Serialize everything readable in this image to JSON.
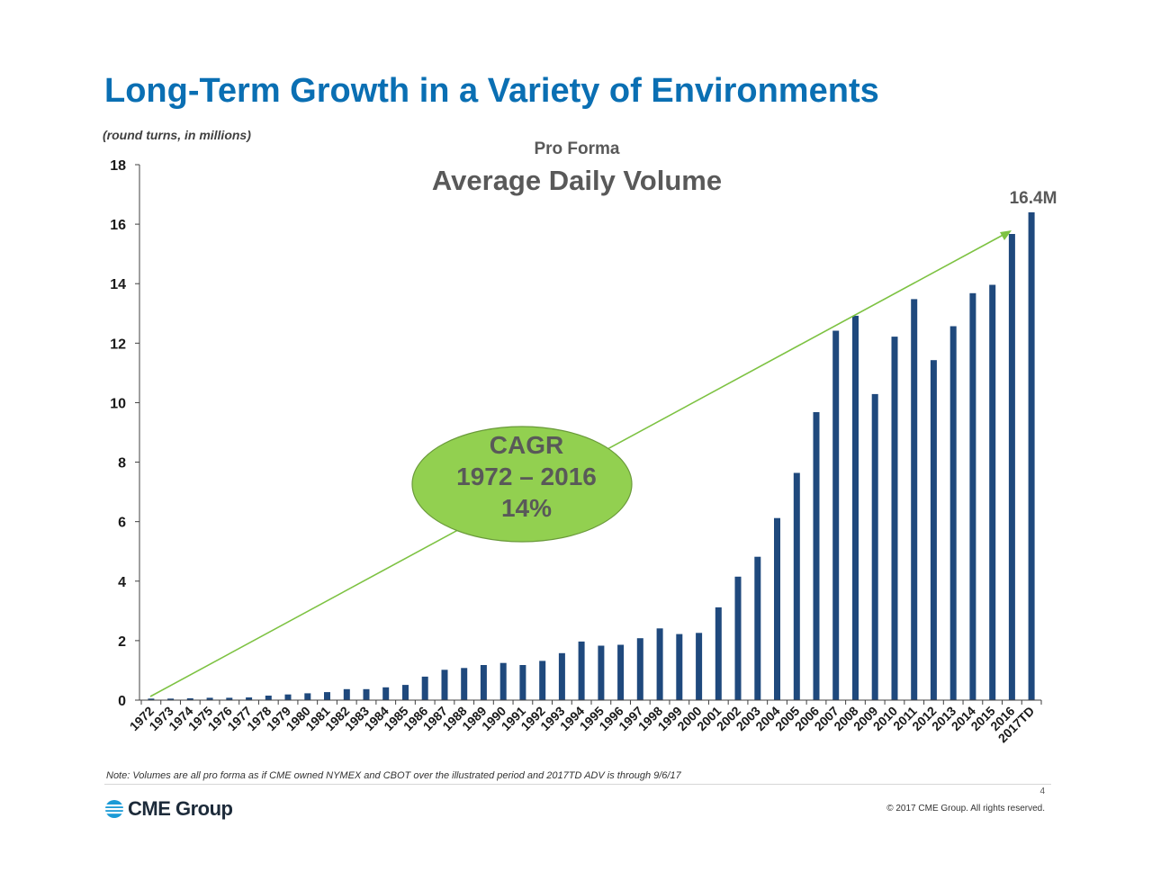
{
  "slide": {
    "title": "Long-Term Growth in a Variety of Environments",
    "units_note": "(round turns, in millions)",
    "footnote": "Note:  Volumes are all pro forma as if CME owned NYMEX and CBOT over the illustrated period and 2017TD ADV is through 9/6/17",
    "page_number": "4",
    "copyright": "© 2017 CME Group. All rights reserved.",
    "logo_text": "CME Group"
  },
  "colors": {
    "title": "#0a6fb3",
    "bar": "#1f497d",
    "trend_line": "#7dc242",
    "cagr_fill": "#92d050",
    "cagr_border": "#6a9a3a",
    "chart_title": "#595959",
    "cagr_text": "#595959"
  },
  "chart_data": {
    "type": "bar",
    "title_small": "Pro Forma",
    "title": "Average Daily Volume",
    "xlabel": "",
    "ylabel": "",
    "ylim": [
      0,
      18
    ],
    "yticks": [
      0,
      2,
      4,
      6,
      8,
      10,
      12,
      14,
      16,
      18
    ],
    "grid": false,
    "categories": [
      "1972",
      "1973",
      "1974",
      "1975",
      "1976",
      "1977",
      "1978",
      "1979",
      "1980",
      "1981",
      "1982",
      "1983",
      "1984",
      "1985",
      "1986",
      "1987",
      "1988",
      "1989",
      "1990",
      "1991",
      "1992",
      "1993",
      "1994",
      "1995",
      "1996",
      "1997",
      "1998",
      "1999",
      "2000",
      "2001",
      "2002",
      "2003",
      "2004",
      "2005",
      "2006",
      "2007",
      "2008",
      "2009",
      "2010",
      "2011",
      "2012",
      "2013",
      "2014",
      "2015",
      "2016",
      "2017TD"
    ],
    "values": [
      0.05,
      0.05,
      0.06,
      0.08,
      0.08,
      0.09,
      0.15,
      0.19,
      0.23,
      0.27,
      0.37,
      0.37,
      0.43,
      0.51,
      0.79,
      1.02,
      1.08,
      1.18,
      1.25,
      1.18,
      1.32,
      1.58,
      1.97,
      1.83,
      1.86,
      2.08,
      2.41,
      2.22,
      2.26,
      3.12,
      4.15,
      4.82,
      6.12,
      7.64,
      9.68,
      12.42,
      12.92,
      10.29,
      12.22,
      13.48,
      11.43,
      12.57,
      13.68,
      13.96,
      15.67,
      16.4
    ],
    "annotations": {
      "last_bar_label": "16.4M",
      "cagr_line1": "CAGR",
      "cagr_line2": "1972 – 2016",
      "cagr_line3": "14%"
    }
  }
}
